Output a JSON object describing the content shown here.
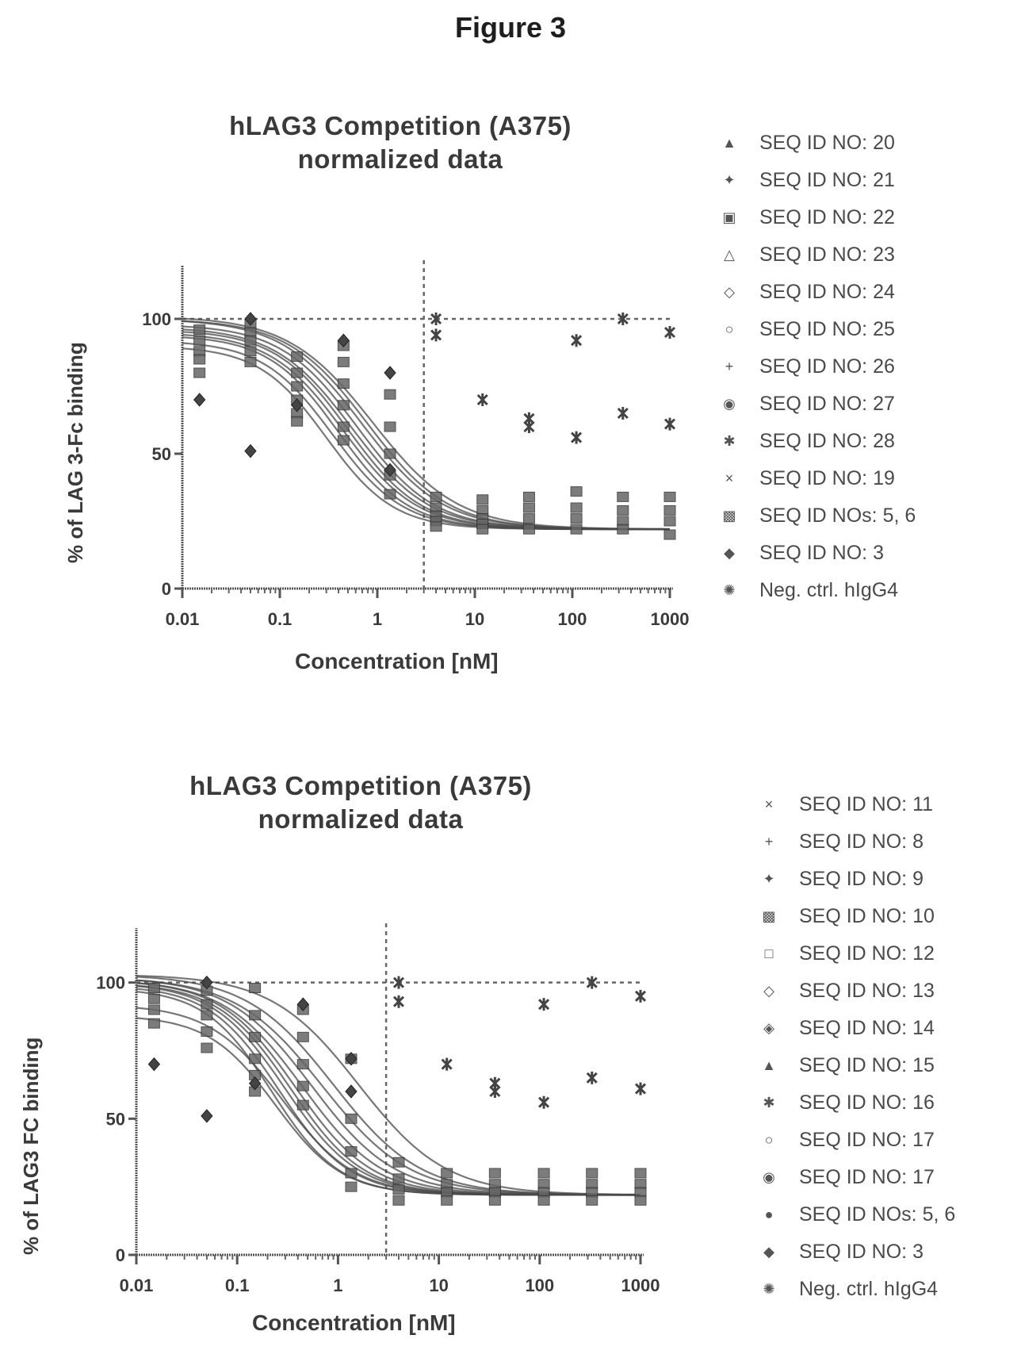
{
  "figure_title": "Figure 3",
  "chart_data": [
    {
      "type": "scatter",
      "title": "hLAG3 Competition (A375)",
      "subtitle": "normalized data",
      "xlabel": "Concentration [nM]",
      "ylabel": "% of LAG 3-Fc binding",
      "x_scale": "log",
      "xlim": [
        0.01,
        1000
      ],
      "ylim": [
        0,
        120
      ],
      "x_ticks": [
        "0.01",
        "0.1",
        "1",
        "10",
        "100",
        "1000"
      ],
      "y_ticks": [
        "0",
        "50",
        "100"
      ],
      "reference_lines": {
        "vertical_x": 3,
        "horizontal_y": 100
      },
      "legend_position": "right",
      "legend": [
        {
          "symbol": "▲",
          "label": "SEQ ID NO: 20"
        },
        {
          "symbol": "✦",
          "label": "SEQ ID NO: 21"
        },
        {
          "symbol": "▣",
          "label": "SEQ ID NO: 22"
        },
        {
          "symbol": "△",
          "label": "SEQ ID NO: 23"
        },
        {
          "symbol": "◇",
          "label": "SEQ ID NO: 24"
        },
        {
          "symbol": "○",
          "label": "SEQ ID NO: 25"
        },
        {
          "symbol": "+",
          "label": "SEQ ID NO: 26"
        },
        {
          "symbol": "◉",
          "label": "SEQ ID NO: 27"
        },
        {
          "symbol": "✱",
          "label": "SEQ ID NO: 28"
        },
        {
          "symbol": "×",
          "label": "SEQ ID NO: 19"
        },
        {
          "symbol": "▩",
          "label": "SEQ ID NOs: 5, 6"
        },
        {
          "symbol": "◆",
          "label": "SEQ ID NO: 3"
        },
        {
          "symbol": "✺",
          "label": "Neg. ctrl. hIgG4"
        }
      ],
      "fit_curves": [
        {
          "top": 90,
          "bottom": 22,
          "ic50": 0.3,
          "hill": 1.25
        },
        {
          "top": 92,
          "bottom": 22,
          "ic50": 0.35,
          "hill": 1.2
        },
        {
          "top": 94,
          "bottom": 22,
          "ic50": 0.4,
          "hill": 1.2
        },
        {
          "top": 95,
          "bottom": 22,
          "ic50": 0.45,
          "hill": 1.15
        },
        {
          "top": 96,
          "bottom": 22,
          "ic50": 0.5,
          "hill": 1.15
        },
        {
          "top": 97,
          "bottom": 22,
          "ic50": 0.55,
          "hill": 1.1
        },
        {
          "top": 98,
          "bottom": 22,
          "ic50": 0.62,
          "hill": 1.1
        },
        {
          "top": 100,
          "bottom": 22,
          "ic50": 0.7,
          "hill": 1.05
        },
        {
          "top": 100,
          "bottom": 22,
          "ic50": 0.8,
          "hill": 1.05
        },
        {
          "top": 101,
          "bottom": 22,
          "ic50": 0.9,
          "hill": 1.0
        }
      ],
      "series": [
        {
          "label": "SEQ ID NOs 19-28 & 5, 6",
          "x": [
            0.015,
            0.015,
            0.015,
            0.015,
            0.015,
            0.05,
            0.05,
            0.05,
            0.05,
            0.05,
            0.15,
            0.15,
            0.15,
            0.15,
            0.15,
            0.15,
            0.45,
            0.45,
            0.45,
            0.45,
            0.45,
            0.45,
            1.35,
            1.35,
            1.35,
            1.35,
            1.35,
            4,
            4,
            4,
            4,
            4,
            12,
            12,
            12,
            12,
            12,
            36,
            36,
            36,
            36,
            110,
            110,
            110,
            110,
            330,
            330,
            330,
            330,
            1000,
            1000,
            1000,
            1000
          ],
          "y": [
            96,
            92,
            88,
            85,
            80,
            98,
            95,
            92,
            88,
            84,
            86,
            80,
            75,
            70,
            65,
            62,
            90,
            84,
            76,
            68,
            60,
            55,
            72,
            60,
            50,
            42,
            35,
            34,
            30,
            27,
            25,
            23,
            33,
            29,
            26,
            24,
            22,
            34,
            30,
            26,
            22,
            36,
            30,
            26,
            22,
            34,
            29,
            25,
            22,
            34,
            29,
            25,
            20
          ]
        },
        {
          "label": "SEQ ID NO: 3",
          "x": [
            0.015,
            0.05,
            0.05,
            0.15,
            0.45,
            1.35,
            1.35
          ],
          "y": [
            70,
            100,
            51,
            68,
            92,
            80,
            44
          ]
        },
        {
          "label": "Neg. ctrl. hIgG4",
          "x": [
            4,
            4,
            12,
            36,
            36,
            110,
            110,
            330,
            330,
            1000,
            1000
          ],
          "y": [
            100,
            94,
            70,
            63,
            60,
            92,
            56,
            100,
            65,
            95,
            61
          ]
        }
      ]
    },
    {
      "type": "scatter",
      "title": "hLAG3 Competition (A375)",
      "subtitle": "normalized data",
      "xlabel": "Concentration [nM]",
      "ylabel": "% of LAG3 FC binding",
      "x_scale": "log",
      "xlim": [
        0.01,
        1000
      ],
      "ylim": [
        0,
        120
      ],
      "x_ticks": [
        "0.01",
        "0.1",
        "1",
        "10",
        "100",
        "1000"
      ],
      "y_ticks": [
        "0",
        "50",
        "100"
      ],
      "reference_lines": {
        "vertical_x": 3,
        "horizontal_y": 100
      },
      "legend_position": "right",
      "legend": [
        {
          "symbol": "×",
          "label": "SEQ ID NO: 11"
        },
        {
          "symbol": "+",
          "label": "SEQ ID NO: 8"
        },
        {
          "symbol": "✦",
          "label": "SEQ ID NO: 9"
        },
        {
          "symbol": "▩",
          "label": "SEQ ID NO: 10"
        },
        {
          "symbol": "□",
          "label": "SEQ ID NO: 12"
        },
        {
          "symbol": "◇",
          "label": "SEQ ID NO: 13"
        },
        {
          "symbol": "◈",
          "label": "SEQ ID NO: 14"
        },
        {
          "symbol": "▲",
          "label": "SEQ ID NO: 15"
        },
        {
          "symbol": "✱",
          "label": "SEQ ID NO: 16"
        },
        {
          "symbol": "○",
          "label": "SEQ ID NO: 17"
        },
        {
          "symbol": "◉",
          "label": "SEQ ID NO: 17"
        },
        {
          "symbol": "●",
          "label": "SEQ ID NOs: 5, 6"
        },
        {
          "symbol": "◆",
          "label": "SEQ ID NO: 3"
        },
        {
          "symbol": "✺",
          "label": "Neg. ctrl. hIgG4"
        }
      ],
      "fit_curves": [
        {
          "top": 98,
          "bottom": 22,
          "ic50": 0.22,
          "hill": 1.3
        },
        {
          "top": 99,
          "bottom": 22,
          "ic50": 0.26,
          "hill": 1.25
        },
        {
          "top": 100,
          "bottom": 22,
          "ic50": 0.3,
          "hill": 1.2
        },
        {
          "top": 100,
          "bottom": 22,
          "ic50": 0.34,
          "hill": 1.2
        },
        {
          "top": 101,
          "bottom": 22,
          "ic50": 0.38,
          "hill": 1.15
        },
        {
          "top": 101,
          "bottom": 22,
          "ic50": 0.45,
          "hill": 1.1
        },
        {
          "top": 102,
          "bottom": 22,
          "ic50": 0.55,
          "hill": 1.05
        },
        {
          "top": 102,
          "bottom": 22,
          "ic50": 0.7,
          "hill": 1.0
        },
        {
          "top": 103,
          "bottom": 22,
          "ic50": 0.9,
          "hill": 1.0
        },
        {
          "top": 103,
          "bottom": 22,
          "ic50": 1.6,
          "hill": 1.0
        },
        {
          "top": 92,
          "bottom": 22,
          "ic50": 0.28,
          "hill": 1.2
        },
        {
          "top": 88,
          "bottom": 22,
          "ic50": 0.24,
          "hill": 1.3
        }
      ],
      "series": [
        {
          "label": "SEQ ID NOs 8-17 & 5, 6",
          "x": [
            0.015,
            0.015,
            0.015,
            0.015,
            0.05,
            0.05,
            0.05,
            0.05,
            0.05,
            0.15,
            0.15,
            0.15,
            0.15,
            0.15,
            0.15,
            0.45,
            0.45,
            0.45,
            0.45,
            0.45,
            1.35,
            1.35,
            1.35,
            1.35,
            1.35,
            4,
            4,
            4,
            4,
            12,
            12,
            12,
            12,
            36,
            36,
            36,
            36,
            110,
            110,
            110,
            110,
            330,
            330,
            330,
            330,
            1000,
            1000,
            1000,
            1000
          ],
          "y": [
            98,
            94,
            90,
            85,
            97,
            92,
            88,
            82,
            76,
            98,
            88,
            80,
            72,
            66,
            60,
            90,
            80,
            70,
            62,
            55,
            72,
            50,
            38,
            30,
            25,
            34,
            28,
            24,
            20,
            30,
            26,
            23,
            20,
            30,
            26,
            23,
            20,
            30,
            26,
            23,
            20,
            30,
            26,
            23,
            20,
            30,
            26,
            23,
            20
          ]
        },
        {
          "label": "SEQ ID NO: 3",
          "x": [
            0.015,
            0.05,
            0.05,
            0.15,
            0.45,
            1.35,
            1.35
          ],
          "y": [
            70,
            100,
            51,
            63,
            92,
            72,
            60
          ]
        },
        {
          "label": "Neg. ctrl. hIgG4",
          "x": [
            4,
            4,
            12,
            36,
            36,
            110,
            110,
            330,
            330,
            1000,
            1000
          ],
          "y": [
            100,
            93,
            70,
            63,
            60,
            92,
            56,
            100,
            65,
            95,
            61
          ]
        }
      ]
    }
  ]
}
